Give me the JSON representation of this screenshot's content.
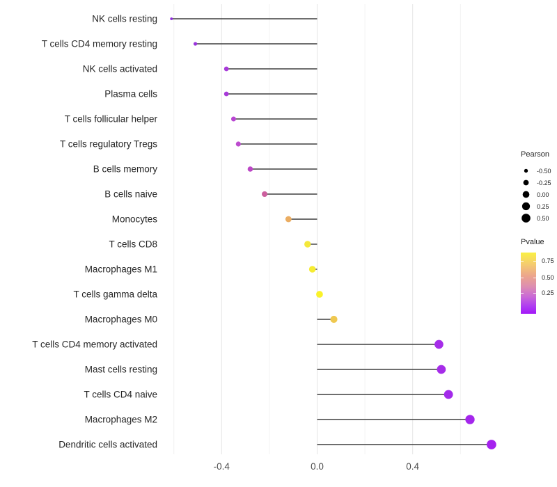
{
  "figure": {
    "background": "#FFFFFF",
    "stem_color": "#3F3F3F",
    "grid_major_color": "#E4E4E4",
    "grid_minor_color": "#F2F2F2",
    "x_tick_text_color": "#4D4D4D",
    "y_label_text_color": "#262626"
  },
  "chart_data": {
    "type": "scatter",
    "variant": "lollipop",
    "orientation": "horizontal",
    "title": "",
    "xlabel": "",
    "ylabel": "",
    "xlim": [
      -0.66,
      0.79
    ],
    "grid": "vertical major and minor gridlines on white background",
    "legend_position": "right",
    "x_major_ticks": [
      -0.4,
      0.0,
      0.4
    ],
    "x_major_tick_labels": [
      "-0.4",
      "0.0",
      "0.4"
    ],
    "x_minor_ticks": [
      -0.6,
      -0.2,
      0.2,
      0.6
    ],
    "size_encodes": "Pearson",
    "color_encodes": "Pvalue",
    "categories": [
      "NK cells resting",
      "T cells CD4 memory resting",
      "NK cells activated",
      "Plasma cells",
      "T cells follicular helper",
      "T cells regulatory  Tregs",
      "B cells memory",
      "B cells naive",
      "Monocytes",
      "T cells CD8",
      "Macrophages M1",
      "T cells gamma delta",
      "Macrophages M0",
      "T cells CD4 memory activated",
      "Mast cells resting",
      "T cells CD4 naive",
      "Macrophages M2",
      "Dendritic cells activated"
    ],
    "series": [
      {
        "name": "Pearson",
        "values": [
          -0.61,
          -0.51,
          -0.38,
          -0.38,
          -0.35,
          -0.33,
          -0.28,
          -0.22,
          -0.12,
          -0.04,
          -0.02,
          0.01,
          0.07,
          0.51,
          0.52,
          0.55,
          0.64,
          0.73
        ]
      }
    ],
    "point_colors": [
      "#8E2BDB",
      "#9934DB",
      "#A83AD9",
      "#A83AD9",
      "#B845D2",
      "#BC4BCE",
      "#BC46C6",
      "#CC5F9E",
      "#EBAD62",
      "#F4E83B",
      "#F6EC32",
      "#FAF229",
      "#EFC850",
      "#A62CE9",
      "#A62CE9",
      "#A32AEA",
      "#A426EC",
      "#A522EE"
    ]
  },
  "legends": {
    "size": {
      "title": "Pearson",
      "dot_color": "#000000",
      "entries": [
        {
          "label": "-0.50",
          "value": -0.5
        },
        {
          "label": "-0.25",
          "value": -0.25
        },
        {
          "label": "0.00",
          "value": 0.0
        },
        {
          "label": "0.25",
          "value": 0.25
        },
        {
          "label": "0.50",
          "value": 0.5
        }
      ]
    },
    "color": {
      "title": "Pvalue",
      "tick_labels": [
        "0.75",
        "0.50",
        "0.25"
      ],
      "gradient_stops": [
        "#FAF043",
        "#F5CE6E",
        "#ECA58C",
        "#DD8FB0",
        "#C969D6",
        "#AE3BF2",
        "#A318F8"
      ]
    }
  }
}
